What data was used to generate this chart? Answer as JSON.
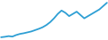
{
  "x": [
    0,
    1,
    2,
    3,
    4,
    5,
    6,
    7,
    8,
    9,
    10,
    11,
    12,
    13,
    14,
    15,
    16,
    17,
    18,
    19,
    20,
    21,
    22,
    23,
    24,
    25,
    26,
    27,
    28
  ],
  "y": [
    1.0,
    1.2,
    1.5,
    1.3,
    2.0,
    2.5,
    2.8,
    3.2,
    3.6,
    4.2,
    4.8,
    5.5,
    6.5,
    7.8,
    9.5,
    11.5,
    13.0,
    12.0,
    10.5,
    11.5,
    12.5,
    11.0,
    9.5,
    10.5,
    11.5,
    12.5,
    13.5,
    15.0,
    16.5
  ],
  "line_color": "#2e9fd4",
  "background_color": "#ffffff",
  "linewidth": 1.3
}
